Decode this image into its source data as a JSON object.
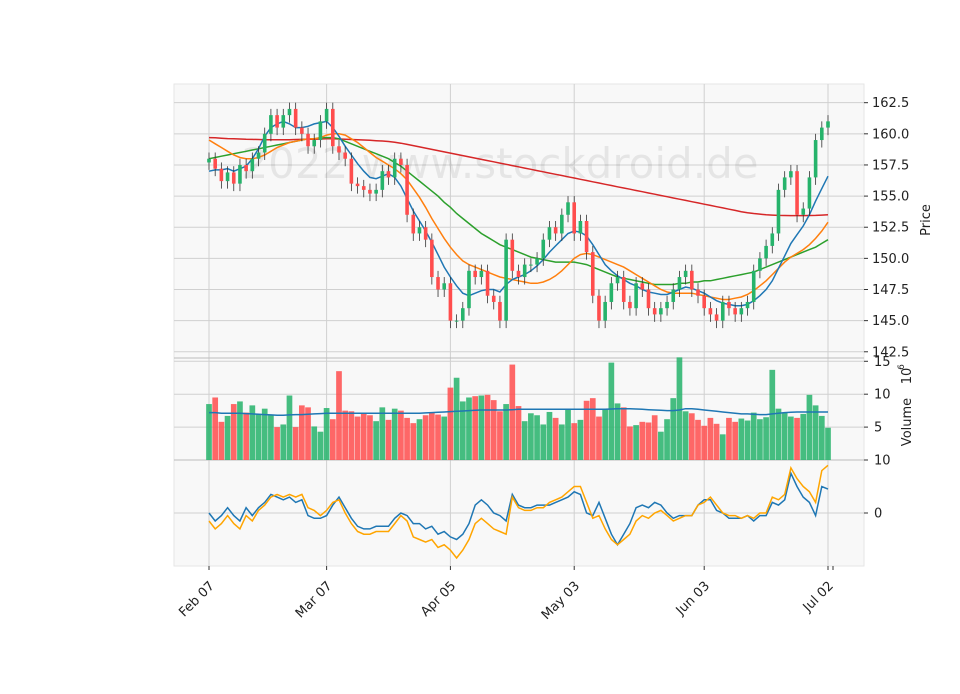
{
  "chart_data": {
    "type": "candlestick",
    "watermark": "2022 www.stockdroid.de",
    "colors": {
      "up": "#26b36b",
      "down": "#ff4d4d",
      "panel_bg": "#f8f8f8",
      "grid": "#d0d0d0",
      "ma_fast": "#1f77b4",
      "ma_mid": "#ff7f0e",
      "ma_slow": "#2ca02c",
      "ma_long": "#d62728",
      "volume_ma": "#1f77b4",
      "osc_a": "#1f77b4",
      "osc_b": "#ffa500"
    },
    "x_ticks": [
      "Feb 07",
      "Mar 07",
      "Apr 05",
      "May 03",
      "Jun 03",
      "Jul 02"
    ],
    "x_tick_index": [
      0,
      19,
      39,
      59,
      80,
      100
    ],
    "price_axis": {
      "label": "Price",
      "ticks": [
        "162.5",
        "160.0",
        "157.5",
        "155.0",
        "152.5",
        "150.0",
        "147.5",
        "145.0",
        "142.5"
      ],
      "tick_values": [
        162.5,
        160.0,
        157.5,
        155.0,
        152.5,
        150.0,
        147.5,
        145.0,
        142.5
      ],
      "ylim": [
        142.0,
        164.0
      ]
    },
    "volume_axis": {
      "label": "Volume",
      "exponent": "10",
      "exponent_power": "6",
      "ticks": [
        "15",
        "10",
        "5"
      ],
      "tick_values": [
        15,
        10,
        5
      ],
      "ylim": [
        0,
        15.5
      ]
    },
    "osc_axis": {
      "ticks": [
        "10",
        "0"
      ],
      "tick_values": [
        10,
        0
      ],
      "ylim": [
        -10,
        10
      ]
    },
    "closes": [
      158.0,
      157.2,
      156.2,
      156.9,
      156.0,
      157.5,
      157.0,
      158.0,
      158.5,
      160.0,
      161.5,
      160.5,
      161.5,
      162.0,
      160.5,
      160.0,
      159.0,
      159.5,
      161.0,
      162.0,
      159.0,
      158.5,
      158.0,
      156.0,
      155.8,
      155.5,
      155.2,
      155.5,
      157.0,
      156.5,
      158.0,
      157.5,
      153.5,
      152.0,
      152.5,
      151.5,
      148.5,
      147.5,
      148.0,
      145.0,
      145.0,
      146.0,
      149.0,
      148.5,
      149.0,
      147.0,
      146.5,
      145.0,
      151.5,
      149.0,
      148.5,
      149.5,
      149.5,
      150.0,
      151.5,
      152.5,
      152.0,
      153.5,
      154.5,
      152.0,
      153.0,
      150.5,
      147.0,
      145.0,
      146.5,
      148.0,
      148.5,
      146.5,
      146.0,
      148.0,
      147.5,
      146.0,
      145.5,
      146.0,
      146.5,
      147.5,
      148.5,
      149.0,
      147.5,
      147.0,
      146.0,
      145.5,
      145.0,
      146.5,
      146.0,
      145.5,
      146.0,
      146.5,
      149.0,
      150.0,
      151.0,
      152.0,
      155.5,
      156.5,
      157.0,
      153.5,
      154.0,
      156.5,
      159.5,
      160.5,
      161.0
    ],
    "ma_fast": [
      157.0,
      157.1,
      157.1,
      157.2,
      157.0,
      157.2,
      157.4,
      158.0,
      158.8,
      159.8,
      160.5,
      160.8,
      161.0,
      160.8,
      160.5,
      160.5,
      160.6,
      160.8,
      160.9,
      161.0,
      160.5,
      159.8,
      159.0,
      158.3,
      157.6,
      157.0,
      156.5,
      156.4,
      156.6,
      156.8,
      156.5,
      155.8,
      154.8,
      153.8,
      153.0,
      152.2,
      151.3,
      150.3,
      149.3,
      148.5,
      147.8,
      147.2,
      147.0,
      147.2,
      147.4,
      147.5,
      147.5,
      147.3,
      147.9,
      148.3,
      148.5,
      148.7,
      149.0,
      149.4,
      149.9,
      150.5,
      151.0,
      151.5,
      152.0,
      152.2,
      152.1,
      151.8,
      151.1,
      150.3,
      149.5,
      149.0,
      148.6,
      148.3,
      148.0,
      147.8,
      147.5,
      147.3,
      147.2,
      147.1,
      147.1,
      147.3,
      147.5,
      147.7,
      147.6,
      147.4,
      147.2,
      146.9,
      146.6,
      146.4,
      146.3,
      146.2,
      146.2,
      146.3,
      146.6,
      147.0,
      147.5,
      148.2,
      149.2,
      150.2,
      151.2,
      151.9,
      152.6,
      153.5,
      154.6,
      155.6,
      156.6
    ],
    "ma_mid": [
      159.5,
      159.2,
      158.9,
      158.6,
      158.3,
      158.1,
      158.0,
      158.0,
      158.1,
      158.3,
      158.6,
      158.9,
      159.1,
      159.3,
      159.4,
      159.5,
      159.6,
      159.6,
      159.7,
      159.9,
      160.0,
      160.0,
      159.9,
      159.6,
      159.3,
      158.9,
      158.5,
      158.1,
      157.8,
      157.5,
      157.2,
      156.8,
      156.3,
      155.6,
      154.9,
      154.1,
      153.2,
      152.4,
      151.6,
      150.9,
      150.3,
      149.8,
      149.5,
      149.3,
      149.1,
      148.9,
      148.7,
      148.5,
      148.4,
      148.3,
      148.2,
      148.1,
      148.0,
      148.0,
      148.1,
      148.3,
      148.6,
      149.0,
      149.5,
      150.0,
      150.3,
      150.4,
      150.3,
      150.1,
      149.9,
      149.7,
      149.5,
      149.3,
      149.0,
      148.7,
      148.4,
      148.1,
      147.8,
      147.5,
      147.3,
      147.2,
      147.2,
      147.2,
      147.2,
      147.1,
      147.0,
      146.9,
      146.8,
      146.7,
      146.7,
      146.8,
      146.9,
      147.1,
      147.4,
      147.8,
      148.2,
      148.7,
      149.2,
      149.7,
      150.1,
      150.4,
      150.7,
      151.1,
      151.6,
      152.2,
      152.9
    ],
    "ma_slow": [
      158.0,
      158.1,
      158.2,
      158.3,
      158.4,
      158.5,
      158.6,
      158.7,
      158.8,
      158.9,
      159.0,
      159.1,
      159.2,
      159.3,
      159.4,
      159.5,
      159.6,
      159.6,
      159.7,
      159.7,
      159.7,
      159.6,
      159.4,
      159.2,
      159.0,
      158.8,
      158.6,
      158.4,
      158.2,
      158.0,
      157.7,
      157.4,
      157.0,
      156.6,
      156.2,
      155.8,
      155.4,
      155.0,
      154.5,
      154.1,
      153.6,
      153.2,
      152.8,
      152.4,
      152.0,
      151.7,
      151.4,
      151.1,
      150.9,
      150.7,
      150.5,
      150.3,
      150.1,
      150.0,
      149.9,
      149.8,
      149.7,
      149.7,
      149.7,
      149.7,
      149.6,
      149.5,
      149.3,
      149.1,
      148.9,
      148.7,
      148.5,
      148.4,
      148.3,
      148.2,
      148.1,
      148.0,
      147.9,
      147.9,
      147.9,
      147.9,
      148.0,
      148.0,
      148.1,
      148.1,
      148.2,
      148.2,
      148.3,
      148.4,
      148.5,
      148.6,
      148.7,
      148.8,
      148.9,
      149.1,
      149.3,
      149.5,
      149.7,
      149.9,
      150.1,
      150.3,
      150.5,
      150.7,
      150.9,
      151.2,
      151.5
    ],
    "ma_long": [
      159.7,
      159.68,
      159.65,
      159.62,
      159.6,
      159.58,
      159.56,
      159.55,
      159.54,
      159.53,
      159.52,
      159.52,
      159.52,
      159.53,
      159.54,
      159.55,
      159.56,
      159.57,
      159.58,
      159.6,
      159.6,
      159.58,
      159.56,
      159.54,
      159.52,
      159.5,
      159.48,
      159.45,
      159.42,
      159.38,
      159.33,
      159.25,
      159.15,
      159.05,
      158.95,
      158.85,
      158.75,
      158.65,
      158.55,
      158.45,
      158.35,
      158.25,
      158.15,
      158.05,
      157.95,
      157.85,
      157.75,
      157.65,
      157.55,
      157.45,
      157.35,
      157.25,
      157.15,
      157.05,
      156.95,
      156.85,
      156.75,
      156.65,
      156.55,
      156.45,
      156.35,
      156.25,
      156.15,
      156.05,
      155.95,
      155.85,
      155.75,
      155.65,
      155.55,
      155.45,
      155.35,
      155.25,
      155.15,
      155.05,
      154.95,
      154.85,
      154.75,
      154.65,
      154.55,
      154.45,
      154.35,
      154.25,
      154.15,
      154.05,
      153.95,
      153.85,
      153.75,
      153.67,
      153.6,
      153.55,
      153.5,
      153.47,
      153.45,
      153.44,
      153.43,
      153.43,
      153.43,
      153.44,
      153.45,
      153.47,
      153.5
    ],
    "volumes": [
      8.5,
      9.5,
      5.8,
      6.7,
      8.5,
      8.9,
      7.2,
      8.3,
      7.0,
      7.8,
      6.8,
      5.0,
      5.4,
      9.8,
      5.0,
      8.3,
      8.0,
      5.1,
      4.3,
      7.9,
      6.2,
      13.5,
      7.5,
      7.4,
      6.6,
      7.2,
      6.8,
      5.9,
      8.0,
      6.1,
      7.8,
      7.5,
      6.4,
      5.6,
      6.2,
      6.8,
      7.2,
      6.9,
      6.6,
      11.0,
      12.5,
      8.9,
      9.5,
      9.7,
      9.8,
      9.9,
      9.1,
      7.4,
      8.5,
      14.5,
      8.2,
      5.9,
      7.1,
      6.8,
      5.4,
      7.3,
      6.4,
      5.4,
      7.6,
      5.6,
      6.1,
      9.0,
      9.4,
      6.6,
      7.8,
      14.8,
      8.6,
      8.0,
      5.1,
      5.3,
      5.8,
      5.7,
      6.8,
      4.3,
      6.2,
      9.4,
      15.6,
      7.4,
      7.1,
      6.1,
      5.2,
      6.4,
      5.5,
      3.9,
      6.4,
      5.8,
      6.3,
      6.0,
      7.2,
      6.2,
      6.5,
      13.7,
      7.8,
      7.2,
      6.6,
      6.4,
      7.0,
      9.9,
      8.3,
      6.7,
      4.9
    ],
    "volume_ma": [
      7.2,
      7.2,
      7.1,
      7.1,
      7.1,
      7.1,
      7.05,
      7.0,
      6.95,
      6.9,
      6.85,
      6.8,
      6.8,
      6.85,
      6.9,
      6.9,
      6.95,
      7.0,
      7.05,
      7.1,
      7.1,
      7.1,
      7.1,
      7.1,
      7.1,
      7.1,
      7.1,
      7.1,
      7.1,
      7.1,
      7.1,
      7.1,
      7.1,
      7.1,
      7.1,
      7.15,
      7.2,
      7.25,
      7.3,
      7.35,
      7.4,
      7.45,
      7.5,
      7.55,
      7.6,
      7.6,
      7.6,
      7.6,
      7.6,
      7.65,
      7.7,
      7.7,
      7.7,
      7.7,
      7.7,
      7.7,
      7.7,
      7.7,
      7.7,
      7.7,
      7.7,
      7.7,
      7.7,
      7.7,
      7.7,
      7.75,
      7.8,
      7.8,
      7.8,
      7.75,
      7.7,
      7.65,
      7.6,
      7.55,
      7.5,
      7.5,
      7.6,
      7.8,
      7.8,
      7.7,
      7.6,
      7.5,
      7.4,
      7.3,
      7.2,
      7.1,
      7.0,
      7.0,
      6.95,
      6.9,
      6.9,
      7.0,
      7.1,
      7.2,
      7.25,
      7.3,
      7.3,
      7.3,
      7.3,
      7.3,
      7.3
    ],
    "osc_a": [
      0,
      -1.5,
      -0.5,
      1,
      -0.5,
      -1.5,
      1,
      -0.5,
      1,
      2,
      3.5,
      3,
      2.5,
      3,
      2,
      2.5,
      -0.5,
      -1,
      -1,
      -0.5,
      1.5,
      3,
      1,
      -1,
      -2.5,
      -3,
      -3,
      -2.5,
      -2.5,
      -2.5,
      -1,
      0,
      -0.5,
      -2,
      -2,
      -3,
      -2.5,
      -4,
      -3.5,
      -4.5,
      -5,
      -4,
      -2,
      1.5,
      2.5,
      1.5,
      0,
      -0.5,
      -1.5,
      3.5,
      1.5,
      1,
      1,
      1.5,
      1.5,
      1.5,
      2,
      2.5,
      3,
      4,
      3.5,
      0,
      -0.5,
      2,
      -1,
      -4,
      -6,
      -4,
      -2,
      1,
      1.5,
      1,
      2,
      1.5,
      0,
      -1,
      -0.5,
      -0.5,
      -0.5,
      1.5,
      2.5,
      2.5,
      0.5,
      0,
      -1,
      -1,
      -1,
      -0.5,
      -1.5,
      -0.5,
      -0.5,
      2,
      1.5,
      2.5,
      7.5,
      5,
      3,
      2,
      -0.5,
      5,
      4.5
    ],
    "osc_b": [
      -1.5,
      -3,
      -2,
      -0.5,
      -2,
      -3,
      -0.5,
      -1.5,
      0.5,
      1.5,
      3,
      3.5,
      3,
      3.5,
      3,
      3.5,
      1,
      0.5,
      -0.5,
      0.5,
      2,
      2.5,
      0,
      -2,
      -3.5,
      -4,
      -4,
      -3.5,
      -3.5,
      -3.5,
      -2,
      -0.5,
      -1.5,
      -4.5,
      -5,
      -5.5,
      -5,
      -6.5,
      -6,
      -7,
      -8.5,
      -7,
      -5,
      -2,
      -1,
      -2,
      -3,
      -3.5,
      -4,
      3,
      1,
      0.5,
      0.5,
      1,
      1,
      2,
      2.5,
      3,
      4,
      5,
      5,
      2,
      -1,
      -0.5,
      -3,
      -5,
      -6,
      -5,
      -4,
      -1.5,
      -0.5,
      -1,
      0,
      0.5,
      -0.5,
      -1.5,
      -1,
      -0.5,
      -0.5,
      1.5,
      2,
      3,
      1.5,
      0,
      -0.5,
      -0.5,
      -1,
      -0.5,
      -1,
      0,
      0,
      3,
      2.5,
      3.5,
      8.5,
      6.5,
      5,
      4,
      2,
      8,
      9
    ]
  }
}
